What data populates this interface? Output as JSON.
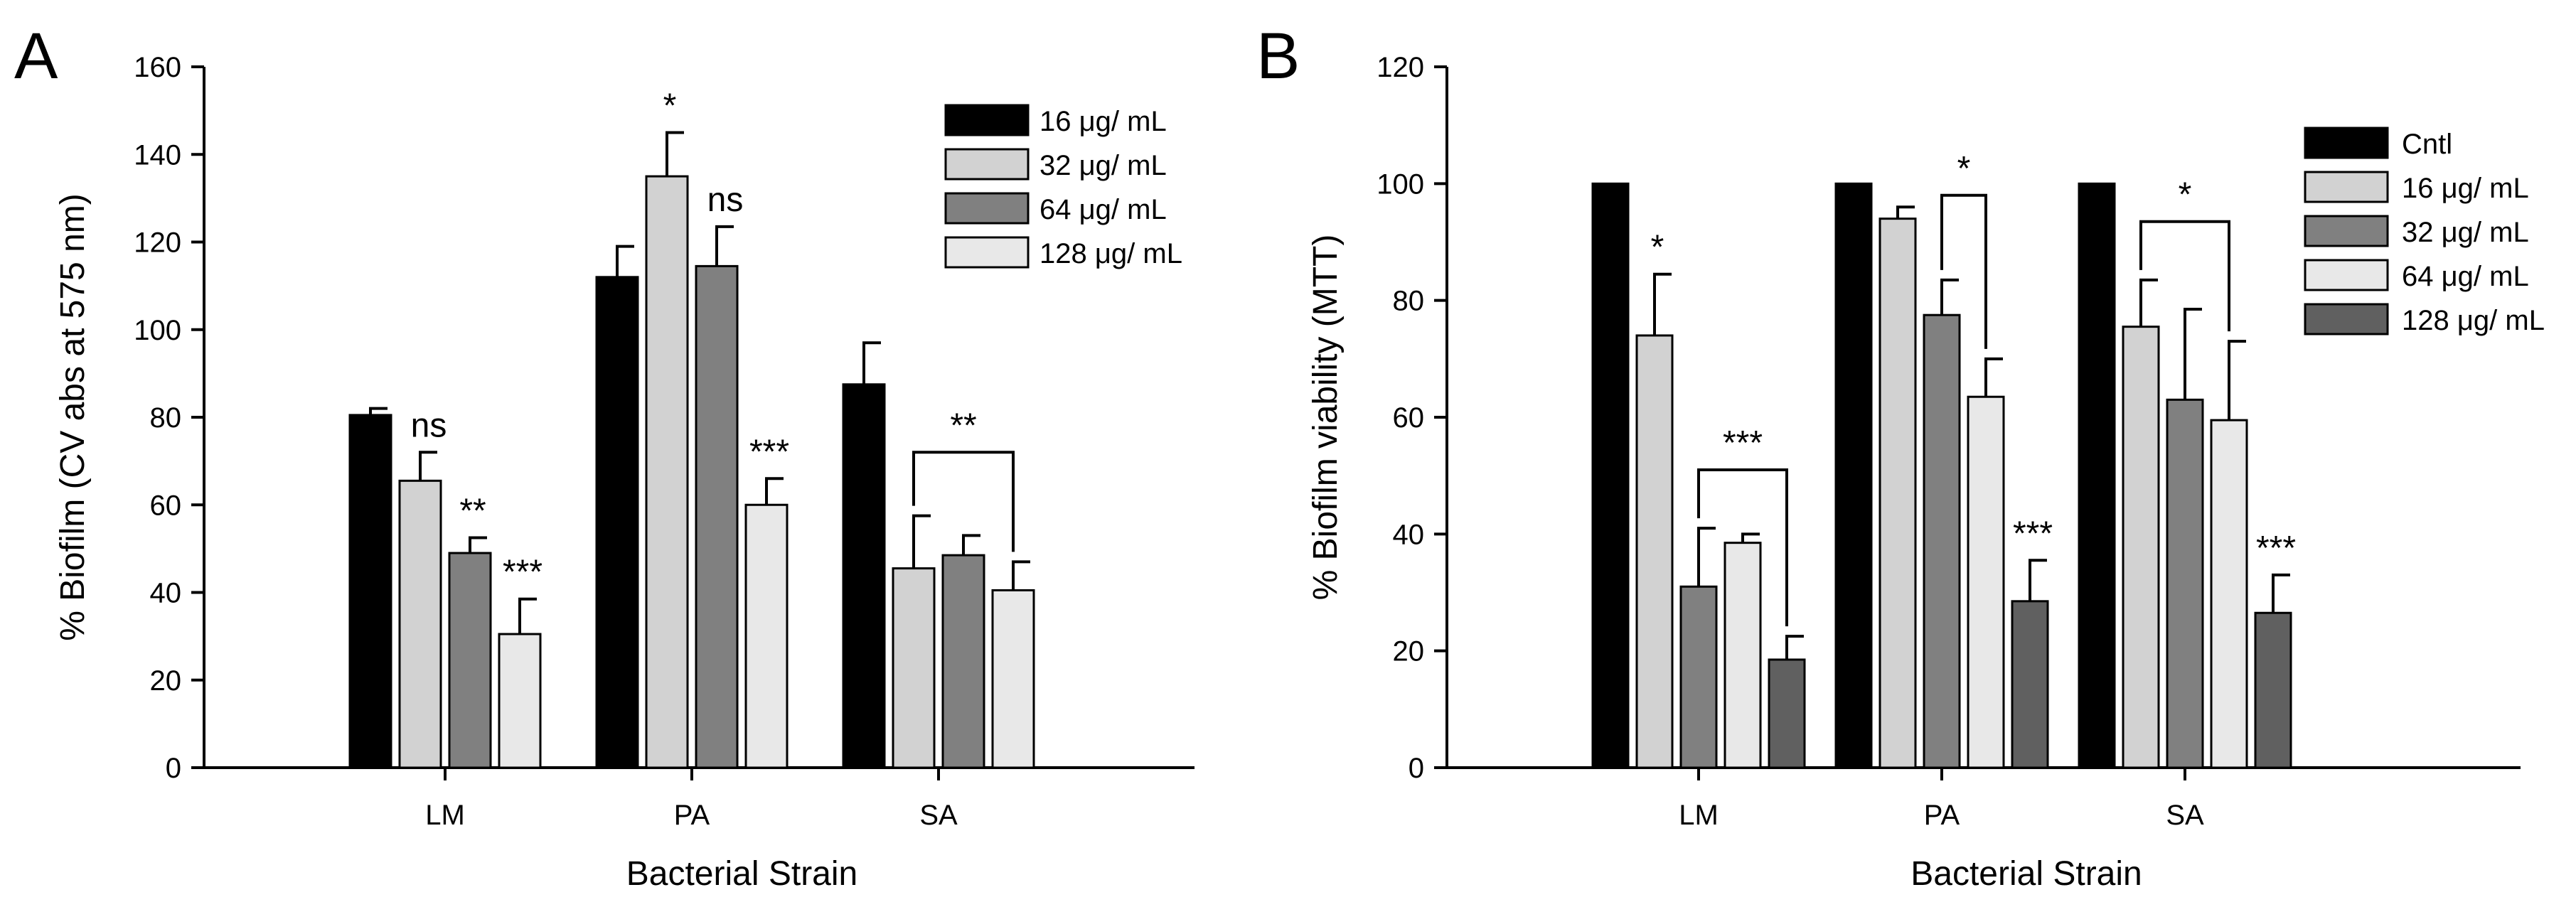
{
  "chart_data": [
    {
      "type": "bar",
      "panel_label": "A",
      "title": "",
      "xlabel": "Bacterial Strain",
      "ylabel": "% Biofilm (CV abs at 575 nm)",
      "ylim": [
        0,
        160
      ],
      "yticks": [
        0,
        20,
        40,
        60,
        80,
        100,
        120,
        140,
        160
      ],
      "ytick_labels": [
        "0",
        "20",
        "40",
        "60",
        "80",
        "100",
        "120",
        "140",
        "160"
      ],
      "categories": [
        "LM",
        "PA",
        "SA"
      ],
      "grid": false,
      "legend_position": "top-right",
      "series": [
        {
          "name": "16 μg/ mL",
          "color": "#000000",
          "values": [
            80.5,
            112,
            87.5
          ],
          "errors": [
            1.5,
            7,
            9.5
          ]
        },
        {
          "name": "32 μg/ mL",
          "color": "#d2d2d2",
          "values": [
            65.5,
            135,
            45.5
          ],
          "errors": [
            6.5,
            10,
            12
          ]
        },
        {
          "name": "64 μg/ mL",
          "color": "#808080",
          "values": [
            49,
            114.5,
            48.5
          ],
          "errors": [
            3.5,
            9,
            4.5
          ]
        },
        {
          "name": "128 μg/ mL",
          "color": "#e8e8e8",
          "values": [
            30.5,
            60,
            40.5
          ],
          "errors": [
            8,
            6,
            6.5
          ]
        }
      ],
      "annotations": [
        {
          "category": "LM",
          "series": 1,
          "text": "ns"
        },
        {
          "category": "LM",
          "series": 2,
          "text": "**"
        },
        {
          "category": "LM",
          "series": 3,
          "text": "***"
        },
        {
          "category": "PA",
          "series": 1,
          "text": "*"
        },
        {
          "category": "PA",
          "series": 2,
          "text": "ns"
        },
        {
          "category": "PA",
          "series": 3,
          "text": "***"
        },
        {
          "category": "SA",
          "bracket": [
            1,
            3
          ],
          "bracket_y": 72,
          "text": "**"
        }
      ]
    },
    {
      "type": "bar",
      "panel_label": "B",
      "title": "",
      "xlabel": "Bacterial Strain",
      "ylabel": "% Biofilm viability (MTT)",
      "ylim": [
        0,
        120
      ],
      "yticks": [
        0,
        20,
        40,
        60,
        80,
        100,
        120
      ],
      "ytick_labels": [
        "0",
        "20",
        "40",
        "60",
        "80",
        "100",
        "120"
      ],
      "categories": [
        "LM",
        "PA",
        "SA"
      ],
      "grid": false,
      "legend_position": "top-right",
      "series": [
        {
          "name": "Cntl",
          "color": "#000000",
          "values": [
            100,
            100,
            100
          ],
          "errors": [
            0,
            0,
            0
          ]
        },
        {
          "name": "16 μg/ mL",
          "color": "#d2d2d2",
          "values": [
            74,
            94,
            75.5
          ],
          "errors": [
            10.5,
            2,
            8
          ]
        },
        {
          "name": "32 μg/ mL",
          "color": "#808080",
          "values": [
            31,
            77.5,
            63
          ],
          "errors": [
            10,
            6,
            15.5
          ]
        },
        {
          "name": "64 μg/ mL",
          "color": "#e8e8e8",
          "values": [
            38.5,
            63.5,
            59.5
          ],
          "errors": [
            1.5,
            6.5,
            13.5
          ]
        },
        {
          "name": "128 μg/ mL",
          "color": "#606060",
          "values": [
            18.5,
            28.5,
            26.5
          ],
          "errors": [
            4,
            7,
            6.5
          ]
        }
      ],
      "annotations": [
        {
          "category": "LM",
          "series": 1,
          "text": "*"
        },
        {
          "category": "LM",
          "bracket": [
            2,
            4
          ],
          "bracket_y": 51,
          "text": "***"
        },
        {
          "category": "PA",
          "bracket": [
            2,
            3
          ],
          "bracket_y": 98,
          "text": "*"
        },
        {
          "category": "PA",
          "series": 4,
          "text": "***"
        },
        {
          "category": "SA",
          "bracket": [
            1,
            3
          ],
          "bracket_y": 93.5,
          "text": "*"
        },
        {
          "category": "SA",
          "series": 4,
          "text": "***"
        }
      ]
    }
  ]
}
